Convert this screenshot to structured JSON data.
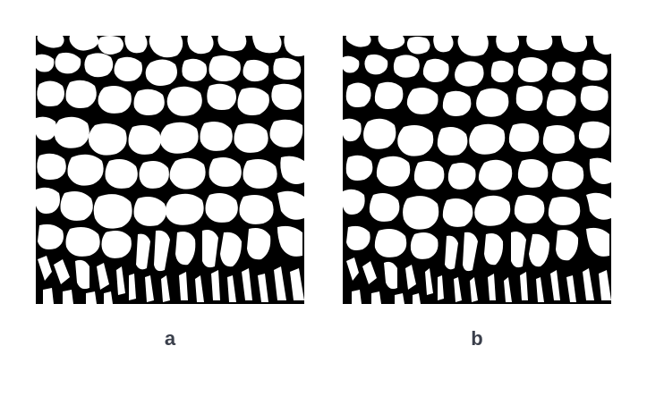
{
  "panels": [
    {
      "id": "a",
      "label": "a",
      "description": "binary-image"
    },
    {
      "id": "b",
      "label": "b",
      "description": "binary-image"
    }
  ],
  "colors": {
    "foreground": "#ffffff",
    "background": "#000000",
    "label": "#3a3f4b"
  }
}
